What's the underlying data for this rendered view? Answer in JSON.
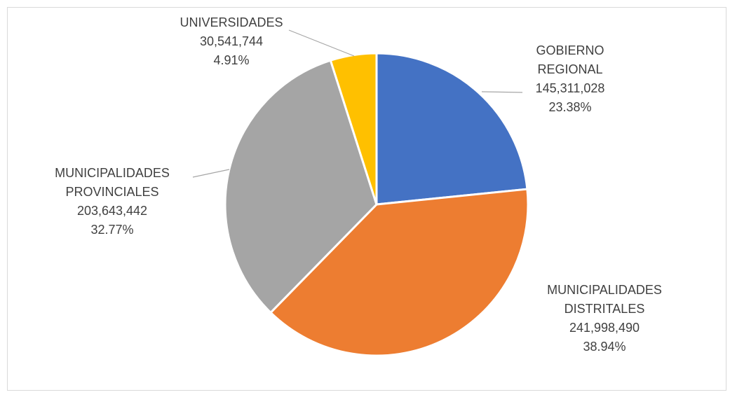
{
  "chart_data": {
    "type": "pie",
    "title": "",
    "slices": [
      {
        "label_lines": [
          "GOBIERNO",
          "REGIONAL"
        ],
        "value": 145311028,
        "value_text": "145,311,028",
        "percent": 23.38,
        "percent_text": "23.38%",
        "color": "#4472C4"
      },
      {
        "label_lines": [
          "MUNICIPALIDADES",
          "DISTRITALES"
        ],
        "value": 241998490,
        "value_text": "241,998,490",
        "percent": 38.94,
        "percent_text": "38.94%",
        "color": "#ED7D31"
      },
      {
        "label_lines": [
          "MUNICIPALIDADES",
          "PROVINCIALES"
        ],
        "value": 203643442,
        "value_text": "203,643,442",
        "percent": 32.77,
        "percent_text": "32.77%",
        "color": "#A5A5A5"
      },
      {
        "label_lines": [
          "UNIVERSIDADES"
        ],
        "value": 30541744,
        "value_text": "30,541,744",
        "percent": 4.91,
        "percent_text": "4.91%",
        "color": "#FFC000"
      }
    ],
    "start_angle": "12 o'clock",
    "direction": "clockwise",
    "legend": "none",
    "data_labels": "outside with leader lines"
  }
}
